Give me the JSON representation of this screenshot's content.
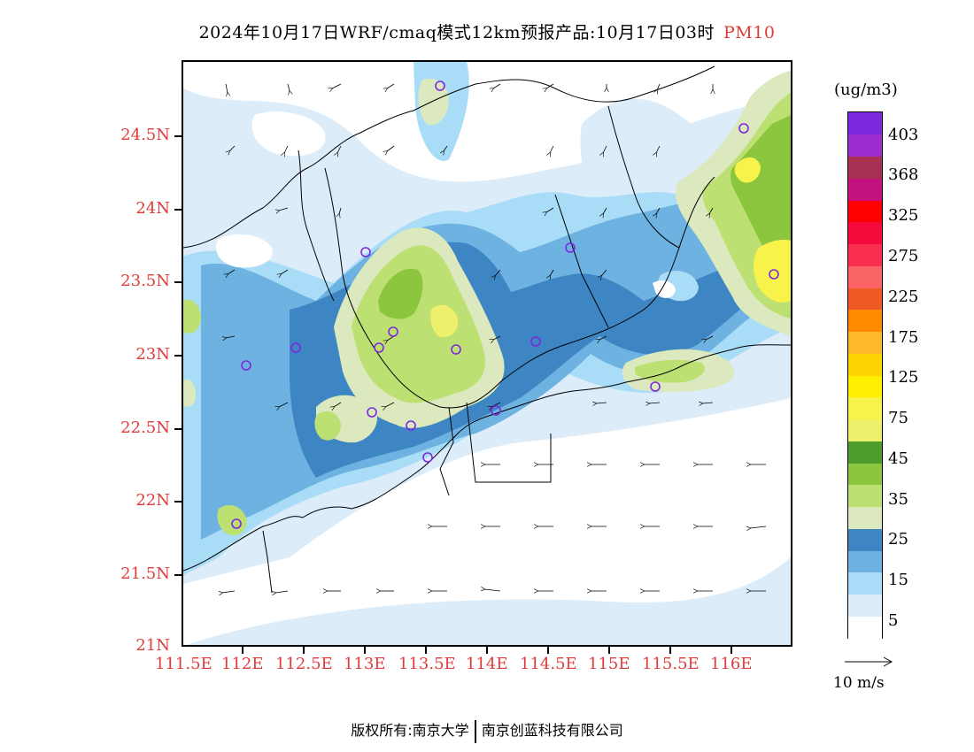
{
  "title": {
    "main": "2024年10月17日WRF/cmaq模式12km预报产品:10月17日03时",
    "variable": "PM10"
  },
  "axes": {
    "lat_labels": [
      "24.5N",
      "24N",
      "23.5N",
      "23N",
      "22.5N",
      "22N",
      "21.5N",
      "21N"
    ],
    "lon_labels": [
      "111.5E",
      "112E",
      "112.5E",
      "113E",
      "113.5E",
      "114E",
      "114.5E",
      "115E",
      "115.5E",
      "116E"
    ]
  },
  "colorbar": {
    "unit": "(ug/m3)",
    "labels": [
      "403",
      "368",
      "325",
      "275",
      "225",
      "175",
      "125",
      "75",
      "45",
      "35",
      "25",
      "15",
      "5"
    ],
    "colors": [
      "#ffffff",
      "#dcecf9",
      "#a8dcf7",
      "#6db2e0",
      "#3e86c3",
      "#dce9bf",
      "#bde073",
      "#8cc63f",
      "#4d9d2c",
      "#eef06c",
      "#f7f34b",
      "#ffef00",
      "#ffd400",
      "#ffb72b",
      "#ff8a00",
      "#ee5a25",
      "#fb6464",
      "#fa2e4e",
      "#f50a3c",
      "#ff0000",
      "#c2127e",
      "#a83053",
      "#9e2dd0",
      "#7d28dc"
    ]
  },
  "wind_reference": {
    "label": "10 m/s"
  },
  "footer": {
    "left": "版权所有:南京大学",
    "right": "南京创蓝科技有限公司"
  }
}
